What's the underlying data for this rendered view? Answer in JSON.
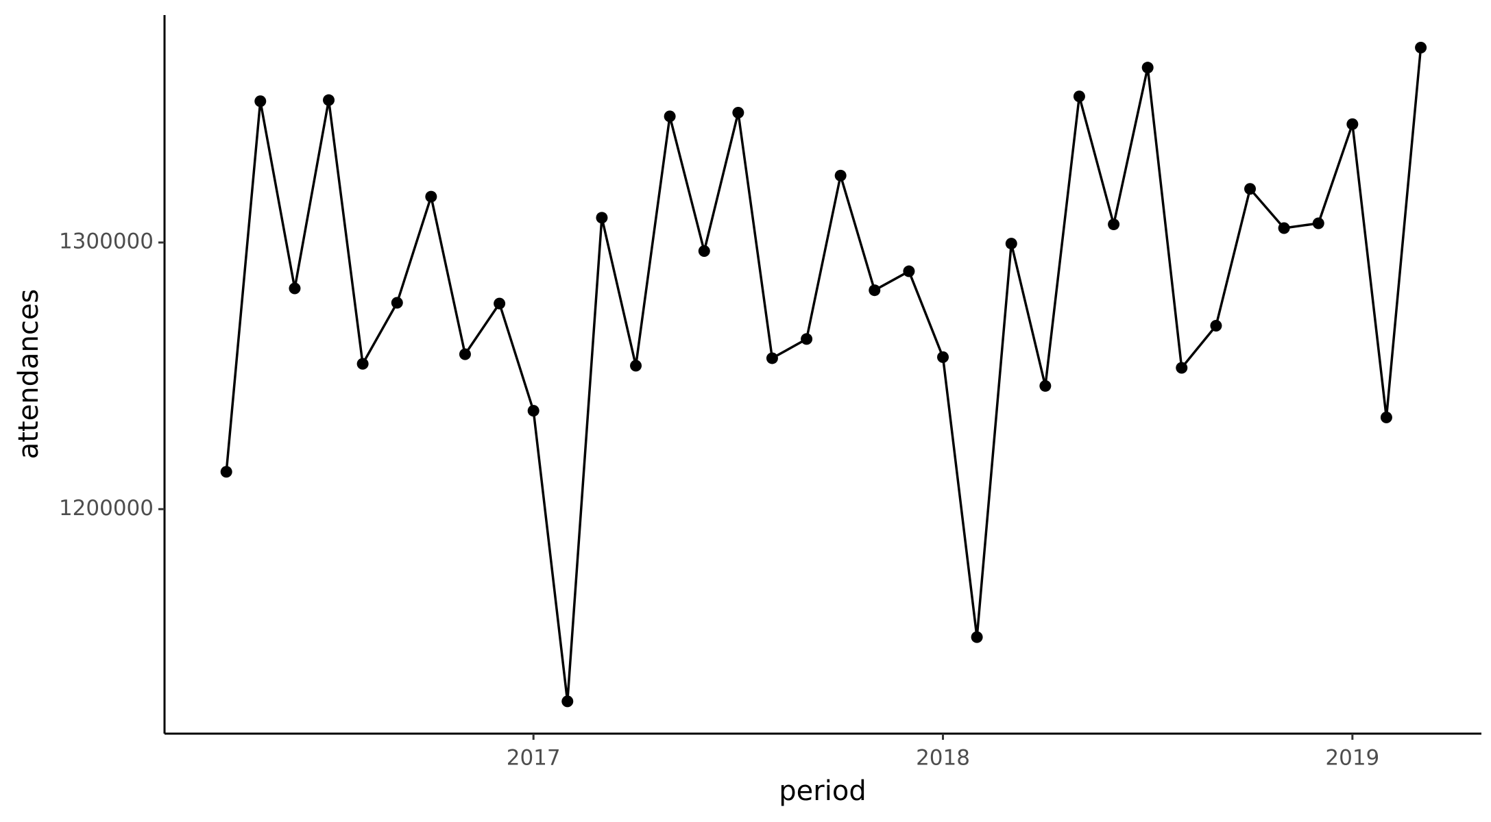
{
  "chart_data": {
    "type": "line",
    "x_label": "period",
    "y_label": "attendances",
    "x": [
      2016.25,
      2016.333,
      2016.417,
      2016.5,
      2016.583,
      2016.667,
      2016.75,
      2016.833,
      2016.917,
      2017.0,
      2017.083,
      2017.167,
      2017.25,
      2017.333,
      2017.417,
      2017.5,
      2017.583,
      2017.667,
      2017.75,
      2017.833,
      2017.917,
      2018.0,
      2018.083,
      2018.167,
      2018.25,
      2018.333,
      2018.417,
      2018.5,
      2018.583,
      2018.667,
      2018.75,
      2018.833,
      2018.917,
      2019.0,
      2019.083,
      2019.167
    ],
    "series": [
      {
        "name": "attendances",
        "color": "#000000",
        "values": [
          1214000,
          1353000,
          1282800,
          1353400,
          1254500,
          1277400,
          1317200,
          1258100,
          1277100,
          1236900,
          1127900,
          1309300,
          1253800,
          1347300,
          1296800,
          1348700,
          1256600,
          1263800,
          1325100,
          1282100,
          1289200,
          1257000,
          1152000,
          1299600,
          1246200,
          1354800,
          1306800,
          1365600,
          1253000,
          1268800,
          1320100,
          1305400,
          1307200,
          1344400,
          1234400,
          1373100
        ]
      }
    ],
    "xlim": [
      2016.099,
      2019.315
    ],
    "xticks": [
      2017,
      2018,
      2019
    ],
    "ylim": [
      1115800,
      1385300
    ],
    "yticks": [
      1200000,
      1300000
    ]
  }
}
